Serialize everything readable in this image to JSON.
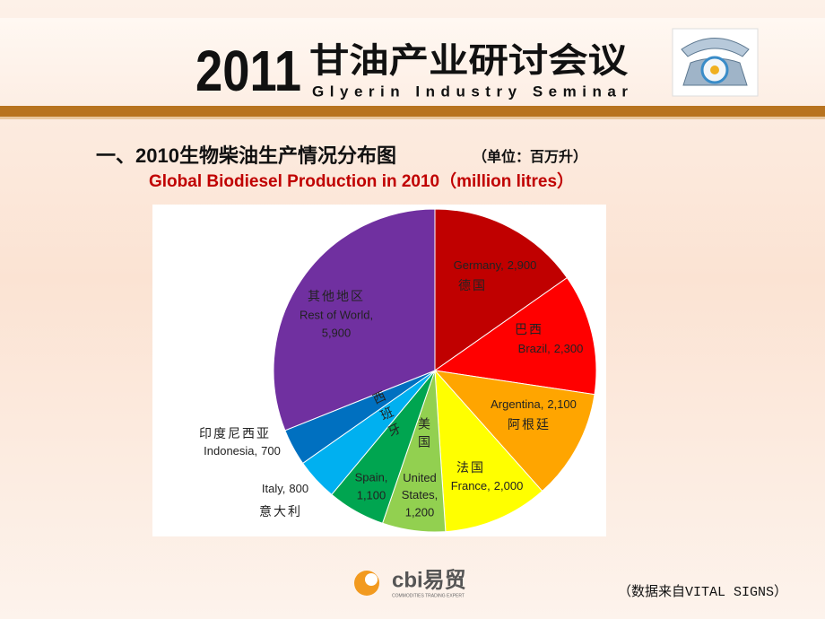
{
  "header": {
    "year": "2011",
    "title_cn": "甘油产业研讨会议",
    "title_en": "Glyerin Industry Seminar"
  },
  "heading": {
    "text": "一、2010生物柴油生产情况分布图",
    "unit": "（单位：百万升）",
    "subtitle": "Global Biodiesel Production in 2010（million litres）"
  },
  "chart_data": {
    "type": "pie",
    "categories": [
      "Germany,",
      "Brazil,",
      "Argentina,",
      "France,",
      "United States,",
      "Spain,",
      "Italy,",
      "Indonesia,",
      "Rest of World,"
    ],
    "names_cn": [
      "德国",
      "巴西",
      "阿根廷",
      "法国",
      "美国",
      "西班牙",
      "意大利",
      "印度尼西亚",
      "其他地区"
    ],
    "values": [
      2900,
      2300,
      2100,
      2000,
      1200,
      1100,
      800,
      700,
      5900
    ],
    "value_labels": [
      "2,900",
      "2,300",
      "2,100",
      "2,000",
      "1,200",
      "1,100",
      "800",
      "700",
      "5,900"
    ],
    "colors": [
      "#c00000",
      "#ff0000",
      "#ffa500",
      "#ffff00",
      "#92d050",
      "#00a550",
      "#00b0f0",
      "#0070c0",
      "#7030a0"
    ]
  },
  "footer": {
    "logo": "cbi易贸",
    "logo_tagline": "COMMODITIES TRADING EXPERT",
    "source": "（数据来自VITAL SIGNS）"
  }
}
